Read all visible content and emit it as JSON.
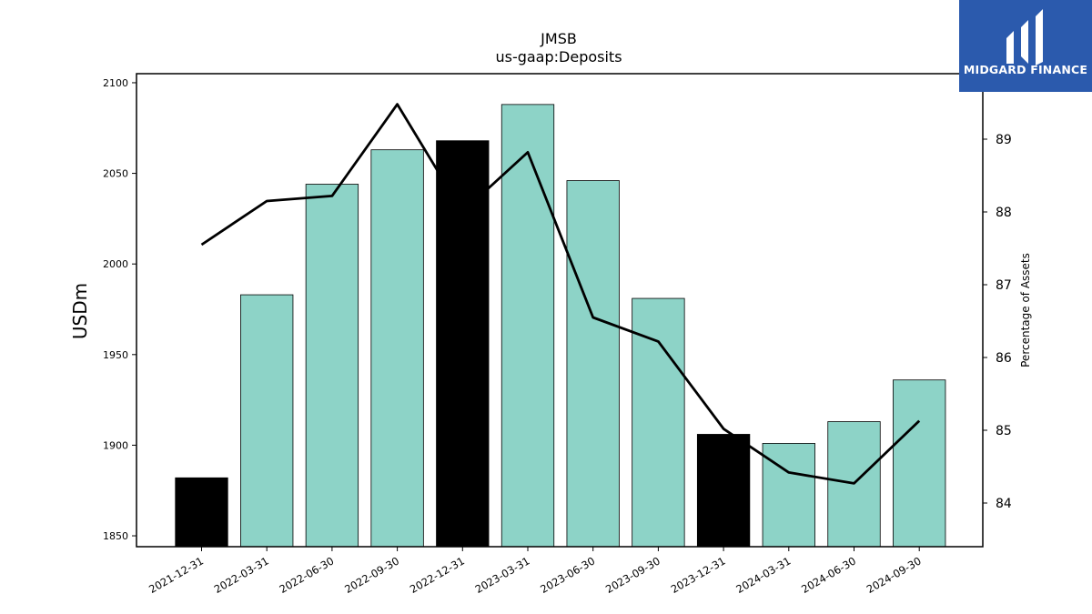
{
  "chart_data": {
    "type": "bar+line",
    "title": "JMSB",
    "subtitle": "us-gaap:Deposits",
    "ylabel": "USDm",
    "y2label": "Percentage of Assets",
    "categories": [
      "2021-12-31",
      "2022-03-31",
      "2022-06-30",
      "2022-09-30",
      "2022-12-31",
      "2023-03-31",
      "2023-06-30",
      "2023-09-30",
      "2023-12-31",
      "2024-03-31",
      "2024-06-30",
      "2024-09-30"
    ],
    "series": [
      {
        "kind": "bar",
        "values": [
          1882,
          1983,
          2044,
          2063,
          2068,
          2088,
          2046,
          1981,
          1906,
          1901,
          1913,
          1936
        ],
        "colors": [
          "#000000",
          "#8dd3c7",
          "#8dd3c7",
          "#8dd3c7",
          "#000000",
          "#8dd3c7",
          "#8dd3c7",
          "#8dd3c7",
          "#000000",
          "#8dd3c7",
          "#8dd3c7",
          "#8dd3c7"
        ]
      },
      {
        "kind": "line",
        "axis": "right",
        "values": [
          87.55,
          88.15,
          88.22,
          89.48,
          88.0,
          88.82,
          86.55,
          86.22,
          85.02,
          84.42,
          84.27,
          85.13
        ],
        "color": "#000000"
      }
    ],
    "ylim": [
      1844,
      2105
    ],
    "yticks": [
      1850,
      1900,
      1950,
      2000,
      2050,
      2100
    ],
    "y2lim": [
      83.4,
      89.9
    ],
    "y2ticks": [
      84,
      85,
      86,
      87,
      88,
      89
    ],
    "grid": false
  },
  "logo": {
    "text": "MIDGARD FINANCE"
  }
}
